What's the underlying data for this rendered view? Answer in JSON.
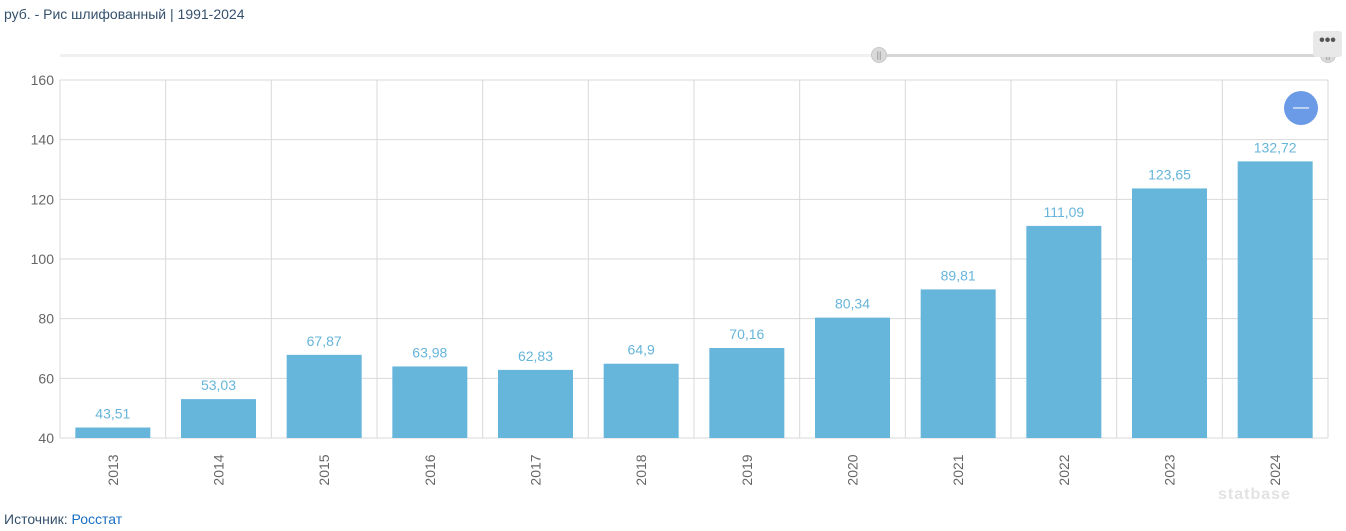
{
  "title": "руб. - Рис шлифованный | 1991-2024",
  "source": {
    "label": "Источник:",
    "link": "Росстат"
  },
  "watermark": "statbase",
  "zoom_button": {
    "symbol": "—"
  },
  "menu_button": {
    "symbol": "•••"
  },
  "range_handles": {
    "left": "||",
    "right": "||"
  },
  "colors": {
    "bar": "#66b5da",
    "label": "#66b5da",
    "grid": "#d9d9d9",
    "accent": "#6b9ae6"
  },
  "chart_data": {
    "type": "bar",
    "title": "руб. - Рис шлифованный | 1991-2024",
    "xlabel": "",
    "ylabel": "",
    "categories": [
      "2013",
      "2014",
      "2015",
      "2016",
      "2017",
      "2018",
      "2019",
      "2020",
      "2021",
      "2022",
      "2023",
      "2024"
    ],
    "values": [
      43.51,
      53.03,
      67.87,
      63.98,
      62.83,
      64.9,
      70.16,
      80.34,
      89.81,
      111.09,
      123.65,
      132.72
    ],
    "value_labels": [
      "43,51",
      "53,03",
      "67,87",
      "63,98",
      "62,83",
      "64,9",
      "70,16",
      "80,34",
      "89,81",
      "111,09",
      "123,65",
      "132,72"
    ],
    "ylim": [
      40,
      160
    ],
    "yticks": [
      40,
      60,
      80,
      100,
      120,
      140,
      160
    ],
    "grid": true,
    "legend": "none"
  }
}
